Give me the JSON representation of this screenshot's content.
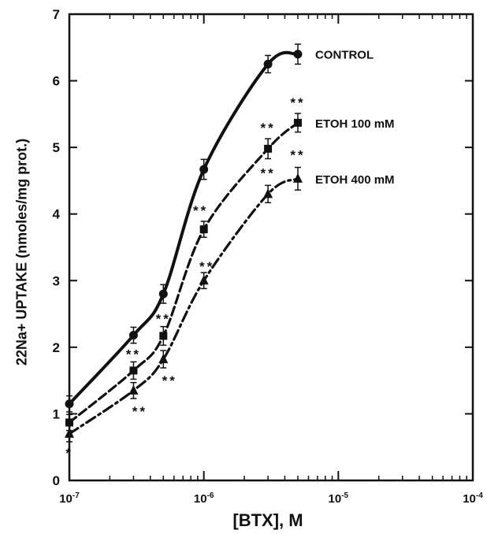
{
  "chart_data": {
    "type": "line",
    "xscale": "log",
    "x_tick_labels": [
      "10-7",
      "10-6",
      "10-5",
      "10-4"
    ],
    "y_ticks": [
      0,
      1,
      2,
      3,
      4,
      5,
      6,
      7
    ],
    "xlim": [
      1e-07,
      0.0001
    ],
    "ylim": [
      0,
      7
    ],
    "xlabel": "[BTX], M",
    "ylabel": "22Na+ UPTAKE (nmoles/mg prot.)",
    "series": [
      {
        "name": "CONTROL",
        "marker": "circle",
        "dash": "solid",
        "x": [
          1e-07,
          3e-07,
          5e-07,
          1e-06,
          3e-06,
          5e-06
        ],
        "y": [
          1.15,
          2.18,
          2.8,
          4.67,
          6.25,
          6.4
        ],
        "err": [
          0.12,
          0.12,
          0.14,
          0.15,
          0.13,
          0.15
        ],
        "significance": [
          "",
          "",
          "",
          "",
          "",
          ""
        ]
      },
      {
        "name": "ETOH 100 mM",
        "marker": "square",
        "dash": "dashed",
        "x": [
          1e-07,
          3e-07,
          5e-07,
          1e-06,
          3e-06,
          5e-06
        ],
        "y": [
          0.87,
          1.65,
          2.17,
          3.77,
          4.98,
          5.37
        ],
        "err": [
          0.12,
          0.13,
          0.14,
          0.12,
          0.15,
          0.14
        ],
        "significance": [
          "",
          "**",
          "**",
          "**",
          "**",
          "**"
        ]
      },
      {
        "name": "ETOH 400 mM",
        "marker": "triangle",
        "dash": "dashdot",
        "x": [
          1e-07,
          3e-07,
          5e-07,
          1e-06,
          3e-06,
          5e-06
        ],
        "y": [
          0.7,
          1.35,
          1.82,
          3.0,
          4.3,
          4.53
        ],
        "err": [
          0.12,
          0.12,
          0.13,
          0.12,
          0.13,
          0.17
        ],
        "significance": [
          "*",
          "**",
          "**",
          "**",
          "**",
          "**"
        ]
      }
    ]
  }
}
